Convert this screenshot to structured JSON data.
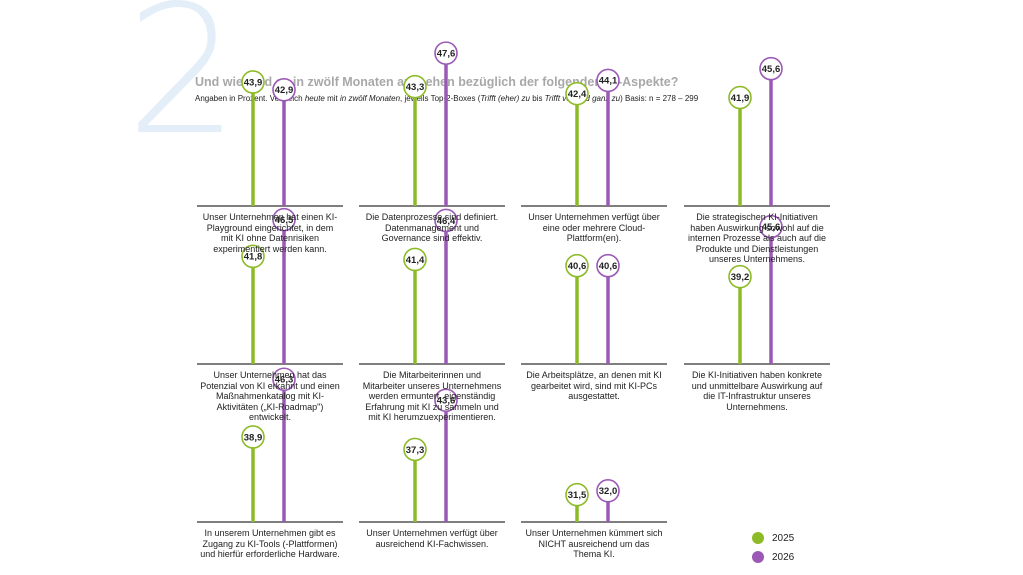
{
  "page": {
    "big_number": "2",
    "title": "Und wie wird es in zwölf Monaten aussehen bezüglich der folgenden KI-Aspekte?",
    "subtitle_parts": [
      "Angaben in Prozent. Vergleich ",
      "heute",
      " mit ",
      "in zwölf Monaten",
      ", jeweils Top-2-Boxes (",
      "Trifft (eher) zu",
      " bis ",
      "Trifft voll und ganz zu",
      ") Basis: n = 278 – 299"
    ]
  },
  "colors": {
    "y2025": "#8dbb27",
    "y2026": "#9b59b6",
    "baseline": "#333333",
    "big_number": "#e3eef8"
  },
  "legend": [
    {
      "label": "2025",
      "color": "#8dbb27"
    },
    {
      "label": "2026",
      "color": "#9b59b6"
    }
  ],
  "chart_data": {
    "type": "bar",
    "series": [
      {
        "name": "2025"
      },
      {
        "name": "2026"
      }
    ],
    "items": [
      {
        "label": "Unser Unternehmen hat einen KI-Playground eingerichtet, in dem mit KI ohne Datenrisiken experimentiert werden kann.",
        "v2025": "43,9",
        "v2026": "42,9"
      },
      {
        "label": "Die Datenprozesse sind definiert. Datenmanagement und Governance sind effektiv.",
        "v2025": "43,3",
        "v2026": "47,6"
      },
      {
        "label": "Unser Unternehmen verfügt über eine oder mehrere Cloud-Plattform(en).",
        "v2025": "42,4",
        "v2026": "44,1"
      },
      {
        "label": "Die strategischen KI-Initiativen haben Auswirkung sowohl auf die internen Prozesse als auch auf die Produkte und Dienstleistungen unseres Unternehmens.",
        "v2025": "41,9",
        "v2026": "45,6"
      },
      {
        "label": "Unser Unternehmen hat das Potenzial von KI erkannt und einen Maßnahmenkatalog mit KI-Aktivitäten („KI-Roadmap\") entwickelt.",
        "v2025": "41,8",
        "v2026": "46,5"
      },
      {
        "label": "Die Mitarbeiterinnen und Mitarbeiter unseres Unternehmens werden ermuntert, eigenständig Erfahrung mit KI zu sammeln und mit KI herumzuexperimentieren.",
        "v2025": "41,4",
        "v2026": "46,4"
      },
      {
        "label": "Die Arbeitsplätze, an denen mit KI gearbeitet wird, sind mit KI-PCs ausgestattet.",
        "v2025": "40,6",
        "v2026": "40,6"
      },
      {
        "label": "Die KI-Initiativen haben konkrete und unmittelbare Auswirkung auf die IT-Infrastruktur unseres Unternehmens.",
        "v2025": "39,2",
        "v2026": "45,6"
      },
      {
        "label": "In unserem Unternehmen gibt es Zugang zu KI-Tools (-Plattformen) und hierfür erforderliche Hardware.",
        "v2025": "38,9",
        "v2026": "46,3"
      },
      {
        "label": "Unser Unternehmen verfügt über ausreichend KI-Fachwissen.",
        "v2025": "37,3",
        "v2026": "43,6"
      },
      {
        "label": "Unser Unternehmen kümmert sich NICHT ausreichend um das Thema KI.",
        "v2025": "31,5",
        "v2026": "32,0"
      }
    ]
  }
}
